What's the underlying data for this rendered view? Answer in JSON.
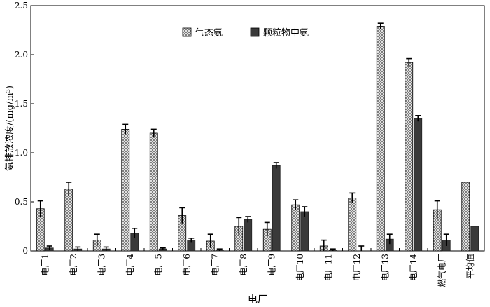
{
  "chart_data": {
    "type": "bar",
    "xlabel": "电厂",
    "ylabel": "氨排放浓度/(mg/m³)",
    "ylim": [
      0,
      2.5
    ],
    "yticks": [
      "0",
      "0.5",
      "1.0",
      "1.5",
      "2.0",
      "2.5"
    ],
    "categories": [
      "电厂1",
      "电厂2",
      "电厂3",
      "电厂4",
      "电厂5",
      "电厂6",
      "电厂7",
      "电厂8",
      "电厂9",
      "电厂10",
      "电厂11",
      "电厂12",
      "电厂13",
      "电厂14",
      "燃气电厂",
      "平均值"
    ],
    "series": [
      {
        "name": "气态氨",
        "pattern": "crosshatch",
        "color": "#d9d9d9",
        "values": [
          0.43,
          0.63,
          0.11,
          1.24,
          1.2,
          0.36,
          0.1,
          0.25,
          0.22,
          0.47,
          0.05,
          0.54,
          2.29,
          1.92,
          0.42,
          0.7
        ],
        "errors": [
          0.08,
          0.07,
          0.06,
          0.05,
          0.04,
          0.08,
          0.07,
          0.09,
          0.07,
          0.05,
          0.06,
          0.05,
          0.03,
          0.04,
          0.09,
          null
        ]
      },
      {
        "name": "颗粒物中氨",
        "pattern": "solid",
        "color": "#3a3a3a",
        "values": [
          0.03,
          0.02,
          0.02,
          0.18,
          0.02,
          0.11,
          0.01,
          0.32,
          0.87,
          0.4,
          0.01,
          0.0,
          0.12,
          1.35,
          0.11,
          0.25
        ],
        "errors": [
          0.02,
          0.02,
          0.02,
          0.05,
          0.01,
          0.02,
          0.01,
          0.03,
          0.03,
          0.05,
          0.01,
          0.05,
          0.05,
          0.03,
          0.06,
          null
        ]
      }
    ],
    "legend": "top-center",
    "grid": false
  }
}
